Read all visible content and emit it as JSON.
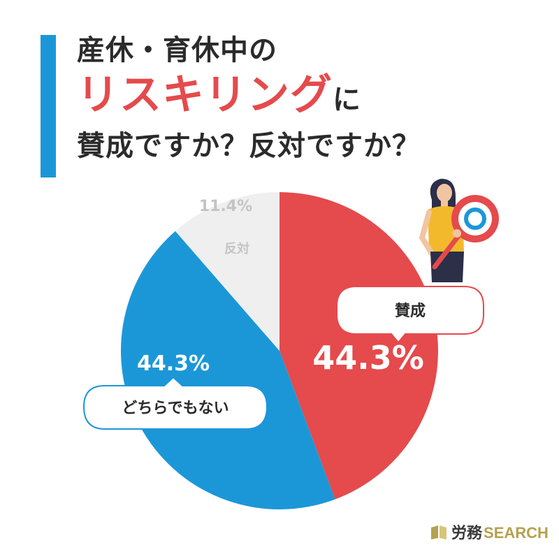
{
  "title": {
    "line1": "産休・育休中の",
    "highlight": "リスキリング",
    "line2_suffix": "に",
    "line3": "賛成ですか？反対ですか？"
  },
  "chart_data": {
    "type": "pie",
    "slices": [
      {
        "label": "賛成",
        "value": 44.3,
        "value_text": "44.3%",
        "color": "#e54a4c"
      },
      {
        "label": "どちらでもない",
        "value": 44.3,
        "value_text": "44.3%",
        "color": "#1b97d8"
      },
      {
        "label": "反対",
        "value": 11.4,
        "value_text": "11.4%",
        "color": "#efefef"
      }
    ],
    "start": "12 o'clock",
    "direction": "clockwise"
  },
  "logo": {
    "ja": "労務",
    "en": "SEARCH"
  },
  "colors": {
    "accent": "#1b97d8",
    "highlight": "#e54a4c",
    "text": "#2b2b2b",
    "logo_gold": "#b5a14e"
  }
}
